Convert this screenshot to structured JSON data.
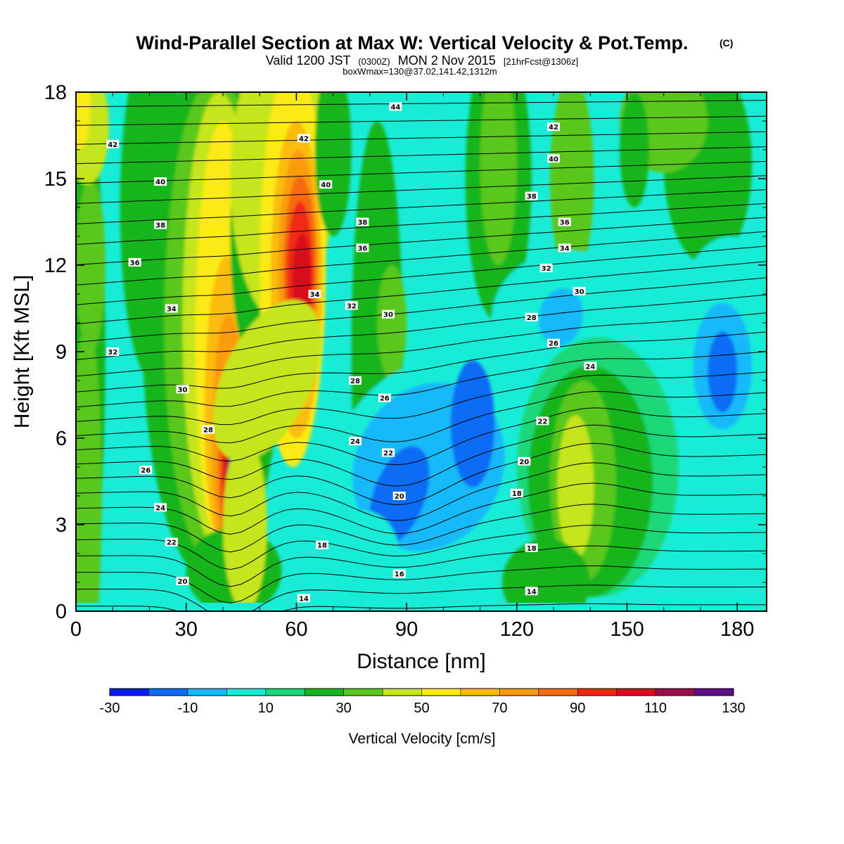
{
  "header": {
    "title": "Wind-Parallel Section at Max W: Vertical Velocity & Pot.Temp.",
    "title_copyright": "(C)",
    "valid_prefix": "Valid 1200 JST",
    "valid_utc": "(0300Z)",
    "valid_date": "MON 2 Nov 2015",
    "forecast_info": "[21hrFcst@1306z]",
    "box_info": "boxWmax=130@37.02,141.42,1312m"
  },
  "chart_data": {
    "type": "heatmap",
    "xlabel": "Distance [nm]",
    "ylabel": "Height [Kft MSL]",
    "xlim": [
      0,
      188
    ],
    "ylim": [
      0,
      18
    ],
    "x_ticks": [
      0,
      30,
      60,
      90,
      120,
      150,
      180
    ],
    "y_ticks": [
      0,
      3,
      6,
      9,
      12,
      15,
      18
    ],
    "colorbar": {
      "label": "Vertical Velocity [cm/s]",
      "ticks": [
        -30,
        -10,
        10,
        30,
        50,
        70,
        90,
        110,
        130
      ],
      "levels": [
        -30,
        -20,
        -10,
        0,
        10,
        20,
        30,
        40,
        50,
        60,
        70,
        80,
        90,
        100,
        110,
        120,
        130
      ],
      "colors": [
        "#0a1cf2",
        "#0d6cf5",
        "#14b9fa",
        "#19ecd6",
        "#1ad878",
        "#18b51e",
        "#5ac71e",
        "#c5e51d",
        "#fcea13",
        "#fbbc0f",
        "#fa9c0f",
        "#f56b10",
        "#f02a12",
        "#d80d1d",
        "#98104a",
        "#5b1185"
      ]
    },
    "vertical_velocity_features": [
      {
        "type": "updraft",
        "x": 42,
        "height": 4.0,
        "max": 130
      },
      {
        "type": "updraft",
        "x": 61,
        "height": 11.5,
        "max": 100
      },
      {
        "type": "downdraft",
        "x": 86,
        "height": 4.0,
        "min": -20
      },
      {
        "type": "downdraft",
        "x": 110,
        "height": 6.0,
        "min": -20
      },
      {
        "type": "downdraft",
        "x": 176,
        "height": 8.5,
        "min": -20
      },
      {
        "type": "updraft",
        "x": 137,
        "height": 4.5,
        "max": 40
      },
      {
        "type": "updraft",
        "x": 132,
        "height": 15.5,
        "max": 30
      }
    ],
    "potential_temperature_labels": [
      {
        "value": "42",
        "x": 10,
        "y": 16.2
      },
      {
        "value": "40",
        "x": 23,
        "y": 14.9
      },
      {
        "value": "38",
        "x": 23,
        "y": 13.4
      },
      {
        "value": "36",
        "x": 16,
        "y": 12.1
      },
      {
        "value": "34",
        "x": 26,
        "y": 10.5
      },
      {
        "value": "32",
        "x": 10,
        "y": 9.0
      },
      {
        "value": "30",
        "x": 29,
        "y": 7.7
      },
      {
        "value": "28",
        "x": 36,
        "y": 6.3
      },
      {
        "value": "26",
        "x": 19,
        "y": 4.9
      },
      {
        "value": "24",
        "x": 23,
        "y": 3.6
      },
      {
        "value": "22",
        "x": 26,
        "y": 2.4
      },
      {
        "value": "20",
        "x": 29,
        "y": 1.05
      },
      {
        "value": "14",
        "x": 62,
        "y": 0.45
      },
      {
        "value": "44",
        "x": 87,
        "y": 17.5
      },
      {
        "value": "42",
        "x": 62,
        "y": 16.4
      },
      {
        "value": "40",
        "x": 68,
        "y": 14.8
      },
      {
        "value": "38",
        "x": 78,
        "y": 13.5
      },
      {
        "value": "36",
        "x": 78,
        "y": 12.6
      },
      {
        "value": "34",
        "x": 65,
        "y": 11.0
      },
      {
        "value": "32",
        "x": 75,
        "y": 10.6
      },
      {
        "value": "30",
        "x": 85,
        "y": 10.3
      },
      {
        "value": "28",
        "x": 76,
        "y": 8.0
      },
      {
        "value": "26",
        "x": 84,
        "y": 7.4
      },
      {
        "value": "24",
        "x": 76,
        "y": 5.9
      },
      {
        "value": "22",
        "x": 85,
        "y": 5.5
      },
      {
        "value": "20",
        "x": 88,
        "y": 4.0
      },
      {
        "value": "18",
        "x": 67,
        "y": 2.3
      },
      {
        "value": "16",
        "x": 88,
        "y": 1.3
      },
      {
        "value": "42",
        "x": 130,
        "y": 16.8
      },
      {
        "value": "40",
        "x": 130,
        "y": 15.7
      },
      {
        "value": "38",
        "x": 124,
        "y": 14.4
      },
      {
        "value": "36",
        "x": 133,
        "y": 13.5
      },
      {
        "value": "34",
        "x": 133,
        "y": 12.6
      },
      {
        "value": "32",
        "x": 128,
        "y": 11.9
      },
      {
        "value": "30",
        "x": 137,
        "y": 11.1
      },
      {
        "value": "28",
        "x": 124,
        "y": 10.2
      },
      {
        "value": "26",
        "x": 130,
        "y": 9.3
      },
      {
        "value": "24",
        "x": 140,
        "y": 8.5
      },
      {
        "value": "22",
        "x": 127,
        "y": 6.6
      },
      {
        "value": "20",
        "x": 122,
        "y": 5.2
      },
      {
        "value": "18",
        "x": 120,
        "y": 4.1
      },
      {
        "value": "18",
        "x": 124,
        "y": 2.2
      },
      {
        "value": "14",
        "x": 124,
        "y": 0.7
      }
    ]
  }
}
